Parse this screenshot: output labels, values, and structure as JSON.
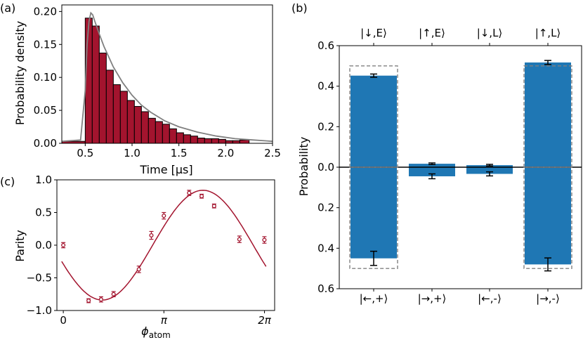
{
  "panel_labels": {
    "a": "(a)",
    "b": "(b)",
    "c": "(c)"
  },
  "colors": {
    "hist_bar": "#A3142E",
    "fit_gray": "#808080",
    "prob_bar": "#1F77B4",
    "parity": "#A3142E"
  },
  "chart_data": [
    {
      "id": "a",
      "type": "bar",
      "xlabel": "Time [μs]",
      "ylabel": "Probability density",
      "xlim": [
        0.25,
        2.5
      ],
      "ylim": [
        0,
        0.21
      ],
      "xticks": [
        "0.5",
        "1.0",
        "1.5",
        "2.0",
        "2.5"
      ],
      "xtick_values": [
        0.5,
        1.0,
        1.5,
        2.0,
        2.5
      ],
      "yticks": [
        "0.00",
        "0.05",
        "0.10",
        "0.15",
        "0.20"
      ],
      "ytick_values": [
        0,
        0.05,
        0.1,
        0.15,
        0.2
      ],
      "bin_edges": [
        0.25,
        0.5,
        0.575,
        0.65,
        0.725,
        0.8,
        0.875,
        0.95,
        1.025,
        1.1,
        1.175,
        1.25,
        1.325,
        1.4,
        1.475,
        1.55,
        1.625,
        1.7,
        1.775,
        1.85,
        1.925,
        2.0,
        2.075,
        2.15,
        2.25
      ],
      "values": [
        0.003,
        0.19,
        0.178,
        0.137,
        0.111,
        0.089,
        0.079,
        0.065,
        0.056,
        0.048,
        0.038,
        0.033,
        0.029,
        0.022,
        0.016,
        0.013,
        0.011,
        0.008,
        0.007,
        0.007,
        0.006,
        0.004,
        0.004,
        0.005
      ],
      "fit": {
        "x": [
          0.25,
          0.45,
          0.5,
          0.52,
          0.54,
          0.56,
          0.58,
          0.6,
          0.65,
          0.7,
          0.8,
          0.9,
          1.0,
          1.1,
          1.2,
          1.35,
          1.5,
          1.7,
          1.9,
          2.1,
          2.3,
          2.5
        ],
        "y": [
          0.003,
          0.005,
          0.08,
          0.15,
          0.185,
          0.198,
          0.195,
          0.186,
          0.166,
          0.147,
          0.116,
          0.092,
          0.073,
          0.058,
          0.047,
          0.034,
          0.025,
          0.017,
          0.011,
          0.007,
          0.005,
          0.003
        ]
      }
    },
    {
      "id": "b",
      "type": "bar",
      "ylabel": "Probability",
      "top_labels": [
        "|↓,E⟩",
        "|↑,E⟩",
        "|↓,L⟩",
        "|↑,L⟩"
      ],
      "bottom_labels": [
        "|←,+⟩",
        "|→,+⟩",
        "|←,-⟩",
        "|→,-⟩"
      ],
      "yticks": [
        "0.6",
        "0.4",
        "0.2",
        "0.0",
        "0.2",
        "0.4",
        "0.6"
      ],
      "ytick_values": [
        0.6,
        0.4,
        0.2,
        0.0,
        -0.2,
        -0.4,
        -0.6
      ],
      "ylim": [
        -0.6,
        0.6
      ],
      "top_values": [
        0.452,
        0.017,
        0.01,
        0.517
      ],
      "top_err": [
        0.008,
        0.004,
        0.004,
        0.01
      ],
      "bottom_values": [
        0.45,
        0.045,
        0.033,
        0.48
      ],
      "bottom_err": [
        0.035,
        0.012,
        0.01,
        0.032
      ],
      "ideal_top": [
        0.5,
        0,
        0,
        0.5
      ],
      "ideal_bottom": [
        0.5,
        0,
        0,
        0.5
      ]
    },
    {
      "id": "c",
      "type": "scatter",
      "xlabel": "ϕ",
      "xlabel_sub": "atom",
      "ylabel": "Parity",
      "xlim": [
        -0.2,
        6.6
      ],
      "ylim": [
        -1.0,
        1.0
      ],
      "xticks": [
        "0",
        "π",
        "2π"
      ],
      "xtick_values": [
        0,
        3.14159,
        6.28318
      ],
      "yticks": [
        "1.0",
        "0.5",
        "0.0",
        "−0.5",
        "−1.0"
      ],
      "ytick_values": [
        1.0,
        0.5,
        0.0,
        -0.5,
        -1.0
      ],
      "points_x": [
        0.0,
        0.79,
        1.18,
        1.57,
        2.36,
        2.75,
        3.14,
        3.93,
        4.32,
        4.71,
        5.5,
        6.28
      ],
      "points_y": [
        0.0,
        -0.85,
        -0.83,
        -0.75,
        -0.37,
        0.15,
        0.45,
        0.8,
        0.75,
        0.6,
        0.09,
        0.08
      ],
      "points_err": [
        0.04,
        0.03,
        0.04,
        0.04,
        0.05,
        0.06,
        0.05,
        0.04,
        0.03,
        0.03,
        0.05,
        0.05
      ],
      "fit": {
        "amplitude": 0.84,
        "phase": -2.79,
        "offset": 0.0,
        "x_range": [
          -0.05,
          6.33
        ]
      }
    }
  ]
}
